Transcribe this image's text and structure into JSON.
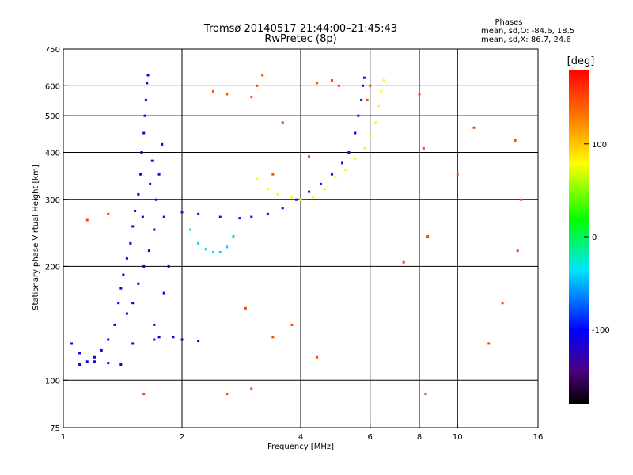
{
  "chart_data": {
    "type": "scatter",
    "title": "Tromsø 20140517 21:44:00–21:45:43",
    "subtitle": "RwPretec (8p)",
    "xlabel": "Frequency [MHz]",
    "ylabel": "Stationary phase Virtual Height [km]",
    "x_scale": "log",
    "y_scale": "log",
    "xlim": [
      1,
      16
    ],
    "ylim": [
      75,
      750
    ],
    "x_ticks": [
      "1",
      "2",
      "4",
      "6",
      "8",
      "10",
      "16"
    ],
    "x_tick_values": [
      1,
      2,
      4,
      6,
      8,
      10,
      16
    ],
    "y_ticks": [
      "75",
      "100",
      "200",
      "300",
      "400",
      "500",
      "600",
      "750"
    ],
    "y_tick_values": [
      75,
      100,
      200,
      300,
      400,
      500,
      600,
      750
    ],
    "x_grid": [
      2,
      4,
      6,
      8,
      10
    ],
    "y_grid": [
      100,
      200,
      300,
      400,
      500,
      600
    ],
    "grid": true,
    "stats": {
      "heading": "Phases",
      "line1": "mean, sd,O: -84.6, 18.5",
      "line2": "mean, sd,X:  86.7, 24.6"
    },
    "colorbar": {
      "label": "[deg]",
      "ticks": [
        "100",
        "0",
        "-100"
      ],
      "tick_values": [
        100,
        0,
        -100
      ],
      "range": [
        -180,
        180
      ],
      "colormap": "rainbow"
    },
    "series": [
      {
        "trace": "low-frequency vertical band",
        "points": [
          [
            1.05,
            125
          ],
          [
            1.1,
            118
          ],
          [
            1.15,
            112
          ],
          [
            1.2,
            115
          ],
          [
            1.25,
            120
          ],
          [
            1.3,
            128
          ],
          [
            1.35,
            140
          ],
          [
            1.38,
            160
          ],
          [
            1.42,
            190
          ],
          [
            1.45,
            210
          ],
          [
            1.48,
            230
          ],
          [
            1.5,
            255
          ],
          [
            1.52,
            280
          ],
          [
            1.55,
            310
          ],
          [
            1.57,
            350
          ],
          [
            1.58,
            400
          ],
          [
            1.6,
            450
          ],
          [
            1.61,
            500
          ],
          [
            1.62,
            550
          ],
          [
            1.63,
            610
          ],
          [
            1.64,
            640
          ],
          [
            1.55,
            180
          ],
          [
            1.6,
            200
          ],
          [
            1.65,
            220
          ],
          [
            1.7,
            250
          ],
          [
            1.72,
            300
          ],
          [
            1.75,
            350
          ],
          [
            1.78,
            420
          ],
          [
            1.68,
            380
          ],
          [
            1.66,
            330
          ],
          [
            1.59,
            270
          ],
          [
            1.5,
            160
          ],
          [
            1.45,
            150
          ],
          [
            1.4,
            175
          ],
          [
            1.7,
            140
          ],
          [
            1.75,
            130
          ],
          [
            1.8,
            170
          ],
          [
            1.85,
            200
          ]
        ],
        "phase": -110
      },
      {
        "trace": "O-mode F trace",
        "points": [
          [
            1.8,
            270
          ],
          [
            2.0,
            278
          ],
          [
            2.2,
            275
          ],
          [
            2.5,
            270
          ],
          [
            2.8,
            268
          ],
          [
            3.0,
            270
          ],
          [
            3.3,
            275
          ],
          [
            3.6,
            285
          ],
          [
            3.9,
            300
          ],
          [
            4.2,
            315
          ],
          [
            4.5,
            330
          ],
          [
            4.8,
            350
          ],
          [
            5.1,
            375
          ],
          [
            5.3,
            400
          ],
          [
            5.5,
            450
          ],
          [
            5.6,
            500
          ],
          [
            5.7,
            550
          ],
          [
            5.75,
            600
          ],
          [
            5.8,
            630
          ]
        ],
        "phase": -95
      },
      {
        "trace": "X-mode F trace",
        "points": [
          [
            3.1,
            340
          ],
          [
            3.3,
            320
          ],
          [
            3.5,
            310
          ],
          [
            3.8,
            305
          ],
          [
            4.0,
            300
          ],
          [
            4.3,
            305
          ],
          [
            4.6,
            320
          ],
          [
            4.9,
            345
          ],
          [
            5.2,
            360
          ],
          [
            5.5,
            385
          ],
          [
            5.8,
            410
          ],
          [
            6.0,
            440
          ],
          [
            6.2,
            480
          ],
          [
            6.3,
            530
          ],
          [
            6.4,
            580
          ],
          [
            6.5,
            620
          ]
        ],
        "phase": 80
      },
      {
        "trace": "lower loop near 2.5 MHz",
        "points": [
          [
            2.1,
            250
          ],
          [
            2.2,
            230
          ],
          [
            2.3,
            222
          ],
          [
            2.4,
            218
          ],
          [
            2.5,
            218
          ],
          [
            2.6,
            225
          ],
          [
            2.7,
            240
          ]
        ],
        "phase": -40
      },
      {
        "trace": "base echoes near 100-130 km",
        "points": [
          [
            1.1,
            110
          ],
          [
            1.2,
            112
          ],
          [
            1.3,
            111
          ],
          [
            1.4,
            110
          ],
          [
            1.5,
            125
          ],
          [
            1.7,
            128
          ],
          [
            1.9,
            130
          ],
          [
            2.0,
            128
          ],
          [
            2.2,
            127
          ]
        ],
        "phase": -115
      },
      {
        "trace": "scattered echoes",
        "points": [
          [
            2.4,
            580
          ],
          [
            2.6,
            570
          ],
          [
            3.0,
            560
          ],
          [
            3.1,
            600
          ],
          [
            3.2,
            640
          ],
          [
            3.4,
            350
          ],
          [
            3.6,
            480
          ],
          [
            4.2,
            390
          ],
          [
            4.4,
            610
          ],
          [
            4.8,
            620
          ],
          [
            5.0,
            600
          ],
          [
            5.9,
            550
          ],
          [
            6.0,
            600
          ],
          [
            8.0,
            570
          ],
          [
            8.2,
            410
          ],
          [
            8.4,
            240
          ],
          [
            10.0,
            350
          ],
          [
            11.0,
            465
          ],
          [
            13.0,
            160
          ],
          [
            14.0,
            430
          ],
          [
            14.5,
            300
          ],
          [
            14.2,
            220
          ],
          [
            12.0,
            125
          ],
          [
            7.3,
            205
          ],
          [
            8.3,
            92
          ],
          [
            1.6,
            92
          ],
          [
            2.6,
            92
          ],
          [
            3.0,
            95
          ],
          [
            3.4,
            130
          ],
          [
            4.4,
            115
          ],
          [
            3.8,
            140
          ],
          [
            2.9,
            155
          ],
          [
            1.15,
            265
          ],
          [
            1.3,
            275
          ]
        ],
        "phase": 150
      }
    ]
  }
}
